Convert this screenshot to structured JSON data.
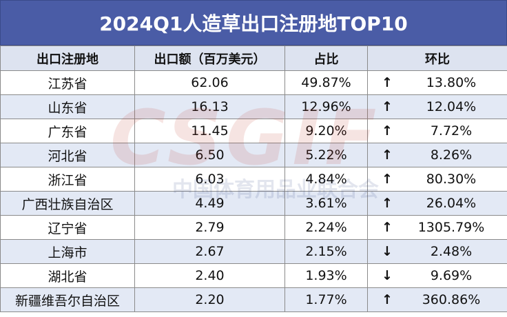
{
  "title": "2024Q1人造草出口注册地TOP10",
  "table": {
    "header": [
      "出口注册地",
      "出口额（百万美元）",
      "占比",
      "环比"
    ],
    "rows": [
      [
        "江苏省",
        "62.06",
        "49.87%",
        "↑",
        "13.80%"
      ],
      [
        "山东省",
        "16.13",
        "12.96%",
        "↑",
        "12.04%"
      ],
      [
        "广东省",
        "11.45",
        "9.20%",
        "↑",
        "7.72%"
      ],
      [
        "河北省",
        "6.50",
        "5.22%",
        "↑",
        "8.26%"
      ],
      [
        "浙江省",
        "6.03",
        "4.84%",
        "↑",
        "80.30%"
      ],
      [
        "广西壮族自治区",
        "4.49",
        "3.61%",
        "↑",
        "26.04%"
      ],
      [
        "辽宁省",
        "2.79",
        "2.24%",
        "↑",
        "1305.79%"
      ],
      [
        "上海市",
        "2.67",
        "2.15%",
        "↓",
        "2.48%"
      ],
      [
        "湖北省",
        "2.40",
        "1.93%",
        "↓",
        "9.69%"
      ],
      [
        "新疆维吾尔自治区",
        "2.20",
        "1.77%",
        "↑",
        "360.86%"
      ]
    ]
  },
  "watermark": {
    "logo": "CSGIF",
    "text": "中国体育用品业联合会"
  }
}
